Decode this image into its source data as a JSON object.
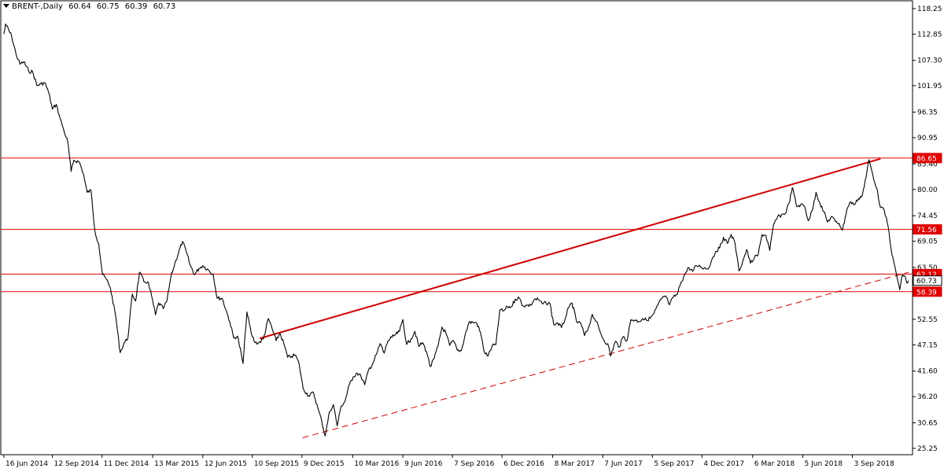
{
  "header": {
    "symbol": "BRENT-,Daily",
    "open": "60.64",
    "high": "60.75",
    "low": "60.39",
    "close": "60.73"
  },
  "colors": {
    "background": "#ffffff",
    "price": "#000000",
    "level": "#e00000",
    "trend": "#d00000",
    "tag_bg": "#e00000",
    "tag_text": "#ffffff"
  },
  "chart_data": {
    "type": "line",
    "symbol": "BRENT-",
    "timeframe": "Daily",
    "xlim": [
      "2014-06-16",
      "2018-12-14"
    ],
    "ylim": [
      25.25,
      119.9
    ],
    "grid": false,
    "y_ticks": [
      "118.25",
      "112.85",
      "107.30",
      "101.95",
      "96.35",
      "90.95",
      "85.40",
      "80.00",
      "74.45",
      "69.05",
      "63.50",
      "58.05",
      "52.55",
      "47.15",
      "41.60",
      "36.20",
      "30.65",
      "25.25"
    ],
    "x_ticks": [
      "16 Jun 2014",
      "12 Sep 2014",
      "11 Dec 2014",
      "13 Mar 2015",
      "12 Jun 2015",
      "10 Sep 2015",
      "9 Dec 2015",
      "10 Mar 2016",
      "9 Jun 2016",
      "7 Sep 2016",
      "6 Dec 2016",
      "8 Mar 2017",
      "7 Jun 2017",
      "5 Sep 2017",
      "4 Dec 2017",
      "6 Mar 2018",
      "5 Jun 2018",
      "3 Sep 2018"
    ],
    "series": [
      {
        "values": [
          [
            "2014-06-16",
            112.9
          ],
          [
            "2014-06-19",
            115.0
          ],
          [
            "2014-06-30",
            112.4
          ],
          [
            "2014-07-08",
            108.6
          ],
          [
            "2014-07-15",
            106.5
          ],
          [
            "2014-07-22",
            107.0
          ],
          [
            "2014-07-31",
            105.0
          ],
          [
            "2014-08-07",
            104.9
          ],
          [
            "2014-08-15",
            102.0
          ],
          [
            "2014-08-22",
            102.3
          ],
          [
            "2014-08-29",
            102.6
          ],
          [
            "2014-09-05",
            100.6
          ],
          [
            "2014-09-12",
            97.0
          ],
          [
            "2014-09-19",
            98.0
          ],
          [
            "2014-09-26",
            95.0
          ],
          [
            "2014-10-03",
            92.4
          ],
          [
            "2014-10-10",
            90.0
          ],
          [
            "2014-10-16",
            83.8
          ],
          [
            "2014-10-21",
            86.2
          ],
          [
            "2014-10-31",
            85.8
          ],
          [
            "2014-11-07",
            83.4
          ],
          [
            "2014-11-14",
            79.4
          ],
          [
            "2014-11-21",
            79.8
          ],
          [
            "2014-11-28",
            71.3
          ],
          [
            "2014-12-05",
            68.5
          ],
          [
            "2014-12-12",
            62.0
          ],
          [
            "2014-12-19",
            61.0
          ],
          [
            "2014-12-26",
            59.3
          ],
          [
            "2015-01-05",
            53.1
          ],
          [
            "2015-01-13",
            45.5
          ],
          [
            "2015-01-20",
            47.5
          ],
          [
            "2015-01-27",
            48.6
          ],
          [
            "2015-02-04",
            57.9
          ],
          [
            "2015-02-10",
            56.4
          ],
          [
            "2015-02-17",
            62.5
          ],
          [
            "2015-02-25",
            60.5
          ],
          [
            "2015-03-04",
            60.5
          ],
          [
            "2015-03-11",
            57.5
          ],
          [
            "2015-03-18",
            53.5
          ],
          [
            "2015-03-24",
            56.0
          ],
          [
            "2015-04-01",
            54.8
          ],
          [
            "2015-04-08",
            56.5
          ],
          [
            "2015-04-15",
            61.5
          ],
          [
            "2015-04-24",
            65.0
          ],
          [
            "2015-05-06",
            69.0
          ],
          [
            "2015-05-13",
            66.8
          ],
          [
            "2015-05-20",
            64.0
          ],
          [
            "2015-05-28",
            62.0
          ],
          [
            "2015-06-05",
            63.3
          ],
          [
            "2015-06-12",
            63.9
          ],
          [
            "2015-06-22",
            63.0
          ],
          [
            "2015-07-01",
            62.0
          ],
          [
            "2015-07-08",
            57.0
          ],
          [
            "2015-07-17",
            57.0
          ],
          [
            "2015-07-24",
            54.6
          ],
          [
            "2015-07-31",
            52.0
          ],
          [
            "2015-08-07",
            48.6
          ],
          [
            "2015-08-14",
            49.0
          ],
          [
            "2015-08-24",
            43.2
          ],
          [
            "2015-08-31",
            54.1
          ],
          [
            "2015-09-08",
            49.5
          ],
          [
            "2015-09-15",
            47.6
          ],
          [
            "2015-09-22",
            47.6
          ],
          [
            "2015-09-30",
            48.4
          ],
          [
            "2015-10-09",
            52.7
          ],
          [
            "2015-10-16",
            50.5
          ],
          [
            "2015-10-23",
            48.0
          ],
          [
            "2015-10-30",
            49.6
          ],
          [
            "2015-11-06",
            47.4
          ],
          [
            "2015-11-13",
            44.5
          ],
          [
            "2015-11-20",
            44.7
          ],
          [
            "2015-11-27",
            45.0
          ],
          [
            "2015-12-04",
            43.0
          ],
          [
            "2015-12-11",
            37.9
          ],
          [
            "2015-12-21",
            36.4
          ],
          [
            "2015-12-30",
            37.0
          ],
          [
            "2016-01-07",
            33.7
          ],
          [
            "2016-01-14",
            30.9
          ],
          [
            "2016-01-20",
            27.9
          ],
          [
            "2016-01-28",
            33.0
          ],
          [
            "2016-02-04",
            34.5
          ],
          [
            "2016-02-11",
            30.0
          ],
          [
            "2016-02-18",
            34.2
          ],
          [
            "2016-02-25",
            35.2
          ],
          [
            "2016-03-04",
            38.7
          ],
          [
            "2016-03-11",
            40.4
          ],
          [
            "2016-03-18",
            41.2
          ],
          [
            "2016-03-25",
            40.5
          ],
          [
            "2016-04-01",
            38.7
          ],
          [
            "2016-04-08",
            41.9
          ],
          [
            "2016-04-15",
            43.1
          ],
          [
            "2016-04-22",
            45.1
          ],
          [
            "2016-04-29",
            47.4
          ],
          [
            "2016-05-06",
            45.4
          ],
          [
            "2016-05-13",
            48.0
          ],
          [
            "2016-05-20",
            48.7
          ],
          [
            "2016-05-27",
            49.3
          ],
          [
            "2016-06-03",
            50.0
          ],
          [
            "2016-06-09",
            52.5
          ],
          [
            "2016-06-16",
            47.2
          ],
          [
            "2016-06-24",
            48.4
          ],
          [
            "2016-07-01",
            50.0
          ],
          [
            "2016-07-08",
            46.8
          ],
          [
            "2016-07-15",
            47.6
          ],
          [
            "2016-07-22",
            45.7
          ],
          [
            "2016-07-29",
            42.5
          ],
          [
            "2016-08-05",
            44.3
          ],
          [
            "2016-08-12",
            46.9
          ],
          [
            "2016-08-19",
            50.9
          ],
          [
            "2016-08-26",
            49.7
          ],
          [
            "2016-09-02",
            47.0
          ],
          [
            "2016-09-09",
            48.0
          ],
          [
            "2016-09-16",
            46.0
          ],
          [
            "2016-09-23",
            45.9
          ],
          [
            "2016-09-30",
            49.2
          ],
          [
            "2016-10-07",
            51.9
          ],
          [
            "2016-10-14",
            51.9
          ],
          [
            "2016-10-21",
            51.8
          ],
          [
            "2016-10-28",
            49.7
          ],
          [
            "2016-11-04",
            45.6
          ],
          [
            "2016-11-11",
            44.8
          ],
          [
            "2016-11-18",
            46.9
          ],
          [
            "2016-11-25",
            47.2
          ],
          [
            "2016-12-02",
            54.5
          ],
          [
            "2016-12-09",
            54.3
          ],
          [
            "2016-12-16",
            55.2
          ],
          [
            "2016-12-23",
            55.2
          ],
          [
            "2016-12-30",
            56.8
          ],
          [
            "2017-01-06",
            57.1
          ],
          [
            "2017-01-13",
            55.4
          ],
          [
            "2017-01-20",
            55.5
          ],
          [
            "2017-01-27",
            55.5
          ],
          [
            "2017-02-03",
            56.8
          ],
          [
            "2017-02-10",
            56.7
          ],
          [
            "2017-02-17",
            55.8
          ],
          [
            "2017-02-24",
            56.0
          ],
          [
            "2017-03-03",
            55.9
          ],
          [
            "2017-03-10",
            51.4
          ],
          [
            "2017-03-17",
            51.8
          ],
          [
            "2017-03-24",
            50.8
          ],
          [
            "2017-03-31",
            52.8
          ],
          [
            "2017-04-07",
            55.2
          ],
          [
            "2017-04-12",
            56.0
          ],
          [
            "2017-04-21",
            51.9
          ],
          [
            "2017-04-28",
            51.7
          ],
          [
            "2017-05-05",
            49.1
          ],
          [
            "2017-05-12",
            50.8
          ],
          [
            "2017-05-19",
            53.6
          ],
          [
            "2017-05-26",
            52.1
          ],
          [
            "2017-06-02",
            49.9
          ],
          [
            "2017-06-09",
            48.1
          ],
          [
            "2017-06-16",
            47.4
          ],
          [
            "2017-06-21",
            44.8
          ],
          [
            "2017-06-30",
            47.9
          ],
          [
            "2017-07-07",
            46.7
          ],
          [
            "2017-07-14",
            48.9
          ],
          [
            "2017-07-21",
            48.1
          ],
          [
            "2017-07-28",
            52.5
          ],
          [
            "2017-08-04",
            52.4
          ],
          [
            "2017-08-11",
            52.1
          ],
          [
            "2017-08-18",
            52.7
          ],
          [
            "2017-08-25",
            52.4
          ],
          [
            "2017-09-01",
            52.8
          ],
          [
            "2017-09-08",
            53.8
          ],
          [
            "2017-09-15",
            55.6
          ],
          [
            "2017-09-22",
            56.9
          ],
          [
            "2017-09-29",
            57.5
          ],
          [
            "2017-10-06",
            55.6
          ],
          [
            "2017-10-13",
            57.2
          ],
          [
            "2017-10-20",
            57.8
          ],
          [
            "2017-10-27",
            60.4
          ],
          [
            "2017-11-03",
            62.1
          ],
          [
            "2017-11-10",
            63.5
          ],
          [
            "2017-11-17",
            62.7
          ],
          [
            "2017-11-24",
            63.9
          ],
          [
            "2017-12-01",
            63.7
          ],
          [
            "2017-12-08",
            63.4
          ],
          [
            "2017-12-15",
            63.2
          ],
          [
            "2017-12-22",
            65.2
          ],
          [
            "2017-12-29",
            66.9
          ],
          [
            "2018-01-05",
            67.6
          ],
          [
            "2018-01-12",
            69.9
          ],
          [
            "2018-01-19",
            68.6
          ],
          [
            "2018-01-26",
            70.5
          ],
          [
            "2018-02-02",
            68.6
          ],
          [
            "2018-02-09",
            62.8
          ],
          [
            "2018-02-16",
            64.8
          ],
          [
            "2018-02-23",
            67.3
          ],
          [
            "2018-03-02",
            64.4
          ],
          [
            "2018-03-09",
            65.5
          ],
          [
            "2018-03-16",
            66.2
          ],
          [
            "2018-03-23",
            70.5
          ],
          [
            "2018-03-30",
            70.3
          ],
          [
            "2018-04-06",
            67.1
          ],
          [
            "2018-04-13",
            72.6
          ],
          [
            "2018-04-20",
            74.1
          ],
          [
            "2018-04-27",
            74.6
          ],
          [
            "2018-05-04",
            74.9
          ],
          [
            "2018-05-11",
            77.1
          ],
          [
            "2018-05-17",
            80.4
          ],
          [
            "2018-05-25",
            76.4
          ],
          [
            "2018-06-01",
            76.8
          ],
          [
            "2018-06-08",
            76.5
          ],
          [
            "2018-06-15",
            73.4
          ],
          [
            "2018-06-22",
            75.5
          ],
          [
            "2018-06-29",
            79.4
          ],
          [
            "2018-07-06",
            77.1
          ],
          [
            "2018-07-13",
            75.3
          ],
          [
            "2018-07-20",
            73.1
          ],
          [
            "2018-07-27",
            74.3
          ],
          [
            "2018-08-03",
            73.2
          ],
          [
            "2018-08-10",
            72.8
          ],
          [
            "2018-08-16",
            71.4
          ],
          [
            "2018-08-24",
            75.8
          ],
          [
            "2018-08-31",
            77.4
          ],
          [
            "2018-09-07",
            76.8
          ],
          [
            "2018-09-14",
            78.1
          ],
          [
            "2018-09-21",
            78.8
          ],
          [
            "2018-09-28",
            82.7
          ],
          [
            "2018-10-03",
            86.3
          ],
          [
            "2018-10-10",
            83.1
          ],
          [
            "2018-10-17",
            80.3
          ],
          [
            "2018-10-24",
            76.2
          ],
          [
            "2018-10-31",
            75.5
          ],
          [
            "2018-11-07",
            72.1
          ],
          [
            "2018-11-14",
            66.1
          ],
          [
            "2018-11-21",
            62.6
          ],
          [
            "2018-11-28",
            58.8
          ],
          [
            "2018-12-03",
            62.0
          ],
          [
            "2018-12-07",
            61.7
          ],
          [
            "2018-12-11",
            60.2
          ],
          [
            "2018-12-14",
            60.73
          ]
        ]
      }
    ],
    "horizontal_levels": [
      {
        "value": 86.65,
        "label": "86.65"
      },
      {
        "value": 71.56,
        "label": "71.56"
      },
      {
        "value": 62.12,
        "label": "62.12"
      },
      {
        "value": 58.39,
        "label": "58.39"
      }
    ],
    "current_price": {
      "value": 60.73,
      "label": "60.73"
    },
    "trendlines": [
      {
        "style": "solid",
        "from": [
          "2015-09-23",
          48.5
        ],
        "to": [
          "2018-10-24",
          86.5
        ]
      },
      {
        "style": "dashed",
        "from": [
          "2015-12-10",
          27.5
        ],
        "to": [
          "2018-12-14",
          62.5
        ]
      }
    ]
  }
}
